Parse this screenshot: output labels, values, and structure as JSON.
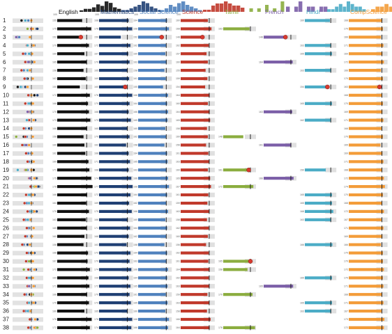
{
  "chart_data": {
    "type": "bar",
    "student_labels": [
      "1",
      "2",
      "3",
      "4",
      "5",
      "6",
      "7",
      "8",
      "9",
      "10",
      "11",
      "12",
      "13",
      "14",
      "15",
      "16",
      "17",
      "18",
      "19",
      "20",
      "21",
      "22",
      "23",
      "24",
      "25",
      "26",
      "27",
      "28",
      "29",
      "30",
      "31",
      "32",
      "33",
      "34",
      "35",
      "36",
      "37",
      "38"
    ],
    "subjects": [
      {
        "name": "English",
        "color": "#111111",
        "scores": [
          155,
          175,
          152,
          170,
          160,
          165,
          158,
          163,
          150,
          172,
          168,
          170,
          173,
          166,
          158,
          160,
          162,
          169,
          171,
          175,
          178,
          166,
          164,
          170,
          163,
          165,
          160,
          158,
          168,
          167,
          172,
          169,
          171,
          166,
          170,
          160,
          176,
          172
        ],
        "student_avg": [
          165,
          165,
          165,
          165,
          165,
          165,
          165,
          165,
          165,
          165,
          165,
          165,
          165,
          165,
          165,
          165,
          165,
          165,
          165,
          165,
          165,
          165,
          165,
          165,
          165,
          165,
          165,
          165,
          165,
          165,
          165,
          165,
          165,
          165,
          165,
          165,
          165,
          165
        ],
        "highlight": [
          false,
          false,
          true,
          false,
          false,
          false,
          false,
          false,
          false,
          false,
          false,
          false,
          false,
          false,
          false,
          false,
          false,
          false,
          false,
          false,
          false,
          false,
          false,
          false,
          false,
          false,
          false,
          false,
          false,
          false,
          false,
          false,
          false,
          false,
          false,
          false,
          false,
          false
        ],
        "histogram": [
          1,
          2,
          2,
          3,
          5,
          4,
          7,
          6,
          3,
          2
        ]
      },
      {
        "name": "Mathematics",
        "color": "#1f3f73",
        "scores": [
          168,
          176,
          150,
          172,
          167,
          170,
          165,
          169,
          160,
          176,
          170,
          168,
          173,
          165,
          170,
          162,
          168,
          171,
          168,
          174,
          177,
          172,
          169,
          175,
          166,
          171,
          168,
          163,
          172,
          170,
          174,
          168,
          172,
          170,
          173,
          165,
          176,
          174
        ],
        "student_avg": [
          165,
          165,
          165,
          165,
          165,
          165,
          165,
          165,
          165,
          165,
          165,
          165,
          165,
          165,
          165,
          165,
          165,
          165,
          165,
          165,
          165,
          165,
          165,
          165,
          165,
          165,
          165,
          165,
          165,
          165,
          165,
          165,
          165,
          165,
          165,
          165,
          165,
          165
        ],
        "highlight": [
          false,
          false,
          false,
          false,
          false,
          false,
          false,
          false,
          true,
          false,
          false,
          false,
          false,
          false,
          false,
          false,
          false,
          false,
          false,
          false,
          false,
          false,
          false,
          false,
          false,
          false,
          false,
          false,
          false,
          false,
          false,
          false,
          false,
          false,
          false,
          false,
          false,
          false
        ],
        "histogram": [
          1,
          1,
          2,
          3,
          4,
          6,
          5,
          3,
          2,
          1
        ]
      },
      {
        "name": "Social Science",
        "color": "#4f81bd",
        "scores": [
          164,
          168,
          152,
          162,
          160,
          163,
          158,
          161,
          155,
          166,
          164,
          166,
          165,
          160,
          162,
          158,
          164,
          165,
          163,
          166,
          168,
          164,
          162,
          166,
          160,
          164,
          162,
          158,
          164,
          163,
          166,
          164,
          165,
          161,
          165,
          160,
          168,
          166
        ],
        "student_avg": [
          162,
          162,
          162,
          162,
          162,
          162,
          162,
          162,
          162,
          162,
          162,
          162,
          162,
          162,
          162,
          162,
          162,
          162,
          162,
          162,
          162,
          162,
          162,
          162,
          162,
          162,
          162,
          162,
          162,
          162,
          162,
          162,
          162,
          162,
          162,
          162,
          162,
          162
        ],
        "highlight": [
          false,
          false,
          true,
          false,
          false,
          false,
          false,
          false,
          false,
          false,
          false,
          false,
          false,
          false,
          false,
          false,
          false,
          false,
          false,
          false,
          false,
          false,
          false,
          false,
          false,
          false,
          false,
          false,
          false,
          false,
          false,
          false,
          false,
          false,
          false,
          false,
          false,
          false
        ],
        "histogram": [
          1,
          2,
          4,
          3,
          5,
          6,
          4,
          3,
          2,
          1
        ]
      },
      {
        "name": "Science",
        "color": "#c0392b",
        "scores": [
          160,
          168,
          148,
          162,
          157,
          160,
          155,
          159,
          154,
          164,
          160,
          164,
          165,
          158,
          160,
          156,
          161,
          163,
          160,
          165,
          167,
          161,
          159,
          163,
          158,
          162,
          160,
          156,
          162,
          161,
          164,
          162,
          163,
          159,
          163,
          158,
          166,
          164
        ],
        "student_avg": [
          163,
          163,
          163,
          163,
          163,
          163,
          163,
          163,
          163,
          163,
          163,
          163,
          163,
          163,
          163,
          163,
          163,
          163,
          163,
          163,
          163,
          163,
          163,
          163,
          163,
          163,
          163,
          163,
          163,
          163,
          163,
          163,
          163,
          163,
          163,
          163,
          163,
          163
        ],
        "highlight": [
          false,
          false,
          true,
          false,
          false,
          false,
          false,
          false,
          false,
          false,
          false,
          false,
          false,
          false,
          false,
          false,
          false,
          false,
          false,
          false,
          false,
          false,
          false,
          false,
          false,
          false,
          false,
          false,
          false,
          false,
          false,
          false,
          false,
          false,
          false,
          false,
          false,
          false
        ],
        "histogram": [
          1,
          1,
          3,
          4,
          4,
          5,
          4,
          3,
          3,
          2
        ]
      },
      {
        "name": "Tamil",
        "color": "#8bad3f",
        "scores": [
          null,
          163,
          null,
          null,
          null,
          null,
          null,
          null,
          null,
          null,
          null,
          null,
          null,
          null,
          148,
          null,
          null,
          null,
          161,
          null,
          172,
          null,
          null,
          null,
          null,
          null,
          null,
          null,
          null,
          165,
          158,
          null,
          null,
          170,
          null,
          null,
          null,
          176
        ],
        "student_avg": [
          165,
          165,
          165,
          165,
          165,
          165,
          165,
          165,
          165,
          165,
          165,
          165,
          165,
          165,
          165,
          165,
          165,
          165,
          165,
          165,
          165,
          165,
          165,
          165,
          165,
          165,
          165,
          165,
          165,
          165,
          165,
          165,
          165,
          165,
          165,
          165,
          165,
          165
        ],
        "highlight": [
          false,
          false,
          false,
          false,
          false,
          false,
          false,
          false,
          false,
          false,
          false,
          false,
          false,
          false,
          false,
          false,
          false,
          false,
          true,
          false,
          false,
          false,
          false,
          false,
          false,
          false,
          false,
          false,
          false,
          true,
          false,
          false,
          false,
          false,
          false,
          false,
          false,
          false
        ],
        "histogram": [
          0,
          1,
          0,
          1,
          0,
          2,
          0,
          1,
          0,
          3
        ]
      },
      {
        "name": "French",
        "color": "#7b5ea7",
        "scores": [
          null,
          null,
          148,
          null,
          null,
          164,
          null,
          null,
          null,
          null,
          null,
          163,
          null,
          null,
          null,
          161,
          null,
          null,
          null,
          166,
          null,
          null,
          null,
          null,
          null,
          null,
          null,
          null,
          null,
          null,
          null,
          null,
          165,
          null,
          null,
          null,
          null,
          null
        ],
        "student_avg": [
          160,
          160,
          160,
          160,
          160,
          160,
          160,
          160,
          160,
          160,
          160,
          160,
          160,
          160,
          160,
          160,
          160,
          160,
          160,
          160,
          160,
          160,
          160,
          160,
          160,
          160,
          160,
          160,
          160,
          160,
          160,
          160,
          160,
          160,
          160,
          160,
          160,
          160
        ],
        "highlight": [
          false,
          false,
          true,
          false,
          false,
          false,
          false,
          false,
          false,
          false,
          false,
          false,
          false,
          false,
          false,
          false,
          false,
          false,
          false,
          false,
          false,
          false,
          false,
          false,
          false,
          false,
          false,
          false,
          false,
          false,
          false,
          false,
          false,
          false,
          false,
          false,
          false,
          false
        ],
        "histogram": [
          1,
          0,
          1,
          2,
          0,
          1,
          1,
          0,
          1,
          1
        ]
      },
      {
        "name": "Hindi",
        "color": "#4bacc6",
        "scores": [
          160,
          null,
          null,
          163,
          165,
          null,
          163,
          null,
          154,
          null,
          165,
          null,
          162,
          null,
          null,
          null,
          null,
          null,
          150,
          null,
          null,
          165,
          165,
          168,
          163,
          null,
          null,
          166,
          null,
          null,
          null,
          165,
          null,
          null,
          165,
          163,
          null,
          null
        ],
        "student_avg": [
          162,
          162,
          162,
          162,
          162,
          162,
          162,
          162,
          162,
          162,
          162,
          162,
          162,
          162,
          162,
          162,
          162,
          162,
          162,
          162,
          162,
          162,
          162,
          162,
          162,
          162,
          162,
          162,
          162,
          162,
          162,
          162,
          162,
          162,
          162,
          162,
          162,
          162
        ],
        "highlight": [
          false,
          false,
          false,
          false,
          false,
          false,
          false,
          false,
          true,
          false,
          false,
          false,
          false,
          false,
          false,
          false,
          false,
          false,
          false,
          false,
          false,
          false,
          false,
          false,
          false,
          false,
          false,
          false,
          false,
          false,
          false,
          false,
          false,
          false,
          false,
          false,
          false,
          false
        ],
        "histogram": [
          1,
          1,
          2,
          3,
          2,
          4,
          3,
          2,
          2,
          1
        ]
      },
      {
        "name": "CompScience",
        "color": "#f39c39",
        "scores": [
          168,
          170,
          166,
          171,
          169,
          172,
          166,
          170,
          163,
          168,
          170,
          169,
          171,
          168,
          170,
          165,
          169,
          171,
          168,
          172,
          174,
          170,
          168,
          172,
          167,
          171,
          169,
          166,
          170,
          170,
          172,
          170,
          171,
          168,
          171,
          167,
          173,
          172
        ],
        "student_avg": [
          168,
          168,
          168,
          168,
          168,
          168,
          168,
          168,
          168,
          168,
          168,
          168,
          168,
          168,
          168,
          168,
          168,
          168,
          168,
          168,
          168,
          168,
          168,
          168,
          168,
          168,
          168,
          168,
          168,
          168,
          168,
          168,
          168,
          168,
          168,
          168,
          168,
          168
        ],
        "highlight": [
          false,
          false,
          false,
          false,
          false,
          false,
          false,
          false,
          true,
          false,
          false,
          false,
          false,
          false,
          false,
          false,
          false,
          false,
          false,
          false,
          false,
          false,
          false,
          false,
          false,
          false,
          false,
          false,
          false,
          false,
          false,
          false,
          false,
          false,
          false,
          false,
          false,
          false
        ],
        "histogram": [
          1,
          2,
          2,
          3,
          2,
          4,
          3,
          2,
          2,
          1
        ]
      }
    ],
    "score_range": [
      100,
      180
    ],
    "histogram_axis_labels": [
      "100",
      "140",
      "160",
      "100",
      "150",
      "170",
      "100",
      "120",
      "140",
      "100",
      "160",
      "180"
    ],
    "legend_placement": "top",
    "grid": false
  }
}
